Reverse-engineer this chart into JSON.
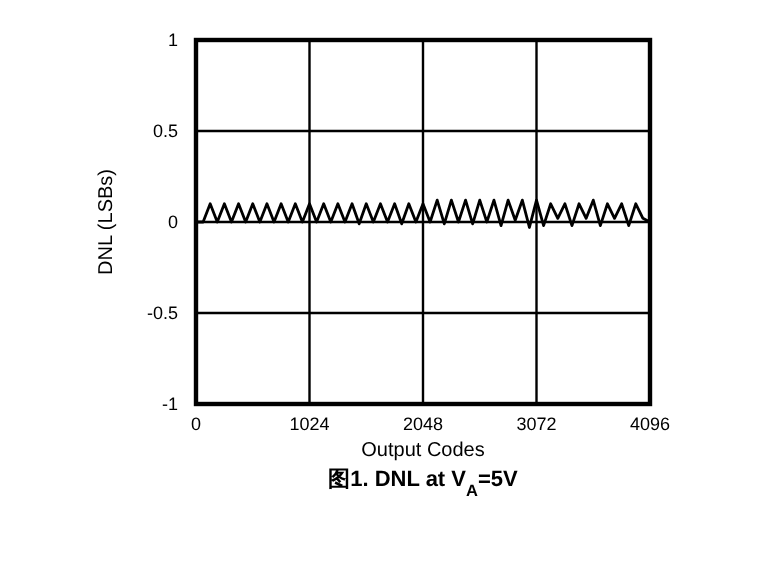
{
  "chart_data": {
    "type": "line",
    "title": "图1. DNL at V$_{A}$=5V",
    "xlabel": "Output Codes",
    "ylabel": "DNL (LSBs)",
    "x": [
      0,
      64,
      128,
      192,
      256,
      320,
      384,
      448,
      512,
      576,
      640,
      704,
      768,
      832,
      896,
      960,
      1024,
      1088,
      1152,
      1216,
      1280,
      1344,
      1408,
      1472,
      1536,
      1600,
      1664,
      1728,
      1792,
      1856,
      1920,
      1984,
      2048,
      2112,
      2176,
      2240,
      2304,
      2368,
      2432,
      2496,
      2560,
      2624,
      2688,
      2752,
      2816,
      2880,
      2944,
      3008,
      3072,
      3136,
      3200,
      3264,
      3328,
      3392,
      3456,
      3520,
      3584,
      3648,
      3712,
      3776,
      3840,
      3904,
      3968,
      4032,
      4095
    ],
    "series": [
      {
        "color": "#000000",
        "values": [
          0,
          0,
          0.1,
          0,
          0.1,
          0,
          0.1,
          0,
          0.1,
          0,
          0.1,
          0,
          0.1,
          0,
          0.1,
          0,
          0.1,
          0,
          0.1,
          0,
          0.1,
          0,
          0.1,
          -0.01,
          0.1,
          0,
          0.1,
          0,
          0.1,
          -0.01,
          0.1,
          0,
          0.1,
          0,
          0.12,
          -0.01,
          0.12,
          0,
          0.12,
          -0.01,
          0.12,
          0,
          0.12,
          -0.02,
          0.12,
          0.01,
          0.12,
          -0.03,
          0.12,
          -0.02,
          0.1,
          0.02,
          0.1,
          -0.02,
          0.1,
          0.02,
          0.12,
          -0.02,
          0.1,
          0.02,
          0.1,
          -0.02,
          0.1,
          0.02,
          0
        ]
      }
    ],
    "xlim": [
      0,
      4096
    ],
    "xticks": [
      0,
      1024,
      2048,
      3072,
      4096
    ],
    "ylim": [
      -1,
      1
    ],
    "yticks": [
      -1,
      -0.5,
      0,
      0.5,
      1
    ],
    "grid": true,
    "marker": "none",
    "line_style": "solid"
  }
}
